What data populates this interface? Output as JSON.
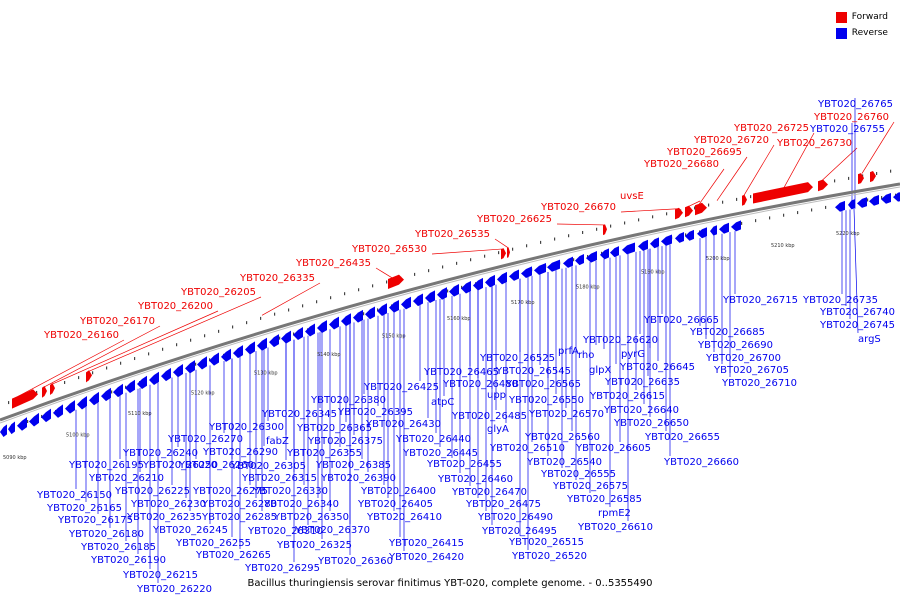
{
  "colors": {
    "forward": "#ee0000",
    "reverse": "#0000ee",
    "axis": "#777777"
  },
  "legend": {
    "forward": "Forward",
    "reverse": "Reverse"
  },
  "caption": "Bacillus thuringiensis serovar finitimus YBT-020, complete genome. - 0..5355490",
  "axis_labels": [
    "5090 kbp",
    "5100 kbp",
    "5110 kbp",
    "5120 kbp",
    "5130 kbp",
    "5140 kbp",
    "5150 kbp",
    "5160 kbp",
    "5170 kbp",
    "5180 kbp",
    "5190 kbp",
    "5200 kbp",
    "5210 kbp",
    "5220 kbp"
  ],
  "forward_genes": [
    "YBT020_26160",
    "YBT020_26170",
    "YBT020_26200",
    "YBT020_26205",
    "YBT020_26335",
    "YBT020_26435",
    "YBT020_26530",
    "YBT020_26535",
    "YBT020_26625",
    "YBT020_26670",
    "uvsE",
    "YBT020_26680",
    "YBT020_26695",
    "YBT020_26720",
    "YBT020_26725",
    "YBT020_26730",
    "YBT020_26760"
  ],
  "reverse_genes": [
    "YBT020_26765",
    "YBT020_26755",
    "YBT020_26715",
    "YBT020_26735",
    "YBT020_26740",
    "YBT020_26745",
    "argS",
    "YBT020_26665",
    "YBT020_26685",
    "YBT020_26690",
    "YBT020_26700",
    "YBT020_26705",
    "YBT020_26710",
    "YBT020_26620",
    "pyrG",
    "YBT020_26645",
    "YBT020_26635",
    "YBT020_26615",
    "YBT020_26640",
    "YBT020_26650",
    "YBT020_26655",
    "YBT020_26660",
    "prfA",
    "rho",
    "glpX",
    "YBT020_26525",
    "YBT020_26545",
    "YBT020_26565",
    "YBT020_26550",
    "YBT020_26570",
    "YBT020_26560",
    "YBT020_26605",
    "YBT020_26510",
    "YBT020_26540",
    "YBT020_26555",
    "YBT020_26575",
    "YBT020_26585",
    "rpmE2",
    "YBT020_26610",
    "YBT020_26465",
    "YBT020_26480",
    "upp",
    "YBT020_26485",
    "glyA",
    "YBT020_26425",
    "atpC",
    "YBT020_26430",
    "YBT020_26440",
    "YBT020_26445",
    "YBT020_26455",
    "YBT020_26460",
    "YBT020_26470",
    "YBT020_26475",
    "YBT020_26490",
    "YBT020_26495",
    "YBT020_26515",
    "YBT020_26520",
    "YBT020_26380",
    "YBT020_26395",
    "YBT020_26345",
    "YBT020_26365",
    "YBT020_26375",
    "YBT020_26355",
    "YBT020_26385",
    "YBT020_26390",
    "YBT020_26400",
    "YBT020_26405",
    "YBT020_26410",
    "YBT020_26415",
    "YBT020_26420",
    "YBT020_26300",
    "fabZ",
    "YBT020_26290",
    "YBT020_26305",
    "YBT020_26315",
    "YBT020_26330",
    "YBT020_26340",
    "YBT020_26350",
    "YBT020_26370",
    "YBT020_26360",
    "YBT020_26325",
    "YBT020_26310",
    "YBT020_26295",
    "YBT020_26270",
    "YBT020_26260",
    "YBT020_26280",
    "YBT020_26285",
    "YBT020_26275",
    "YBT020_26265",
    "YBT020_26255",
    "YBT020_26245",
    "YBT020_26240",
    "YBT020_26250",
    "YBT020_26230",
    "YBT020_26235",
    "YBT020_26225",
    "YBT020_26195",
    "YBT020_26210",
    "YBT020_26150",
    "YBT020_26165",
    "YBT020_26175",
    "YBT020_26180",
    "YBT020_26185",
    "YBT020_26190",
    "YBT020_26215",
    "YBT020_26220"
  ]
}
